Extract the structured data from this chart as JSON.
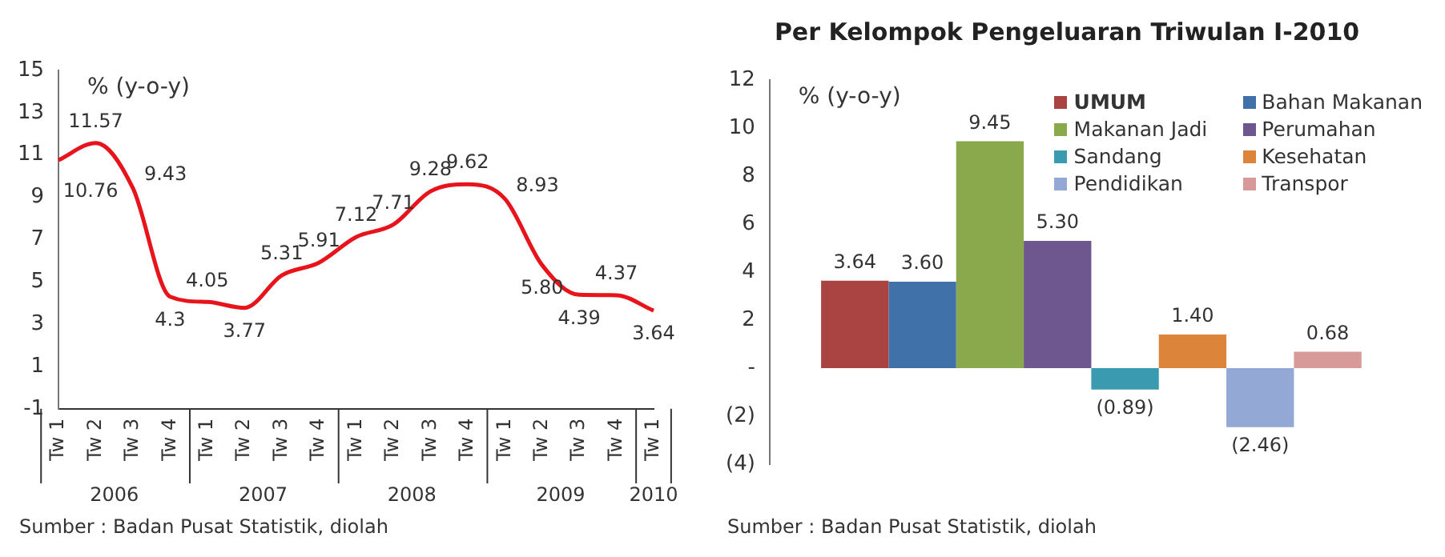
{
  "chart_data": [
    {
      "type": "line",
      "ylabel": "% (y-o-y)",
      "categories": [
        "Tw 1",
        "Tw 2",
        "Tw 3",
        "Tw 4",
        "Tw 1",
        "Tw 2",
        "Tw 3",
        "Tw 4",
        "Tw 1",
        "Tw 2",
        "Tw 3",
        "Tw 4",
        "Tw 1",
        "Tw 2",
        "Tw 3",
        "Tw 4",
        "Tw 1"
      ],
      "series": [
        {
          "color": "#e8141c",
          "values": [
            10.76,
            11.57,
            9.43,
            4.3,
            4.05,
            3.77,
            5.31,
            5.91,
            7.12,
            7.71,
            9.28,
            9.62,
            8.93,
            5.8,
            4.39,
            4.37,
            3.64
          ],
          "value_labels": [
            "10.76",
            "11.57",
            "9.43",
            "4.3",
            "4.05",
            "3.77",
            "5.31",
            "5.91",
            "7.12",
            "7.71",
            "9.28",
            "9.62",
            "8.93",
            "5.80",
            "4.39",
            "4.37",
            "3.64"
          ]
        }
      ],
      "ylim": [
        -1,
        15
      ],
      "yticks": [
        -1,
        1,
        3,
        5,
        7,
        9,
        11,
        13,
        15
      ],
      "grid": false,
      "annotations": [
        "2006",
        "2007",
        "2008",
        "2009",
        "2010",
        "Sumber : Badan Pusat Statistik, diolah"
      ]
    },
    {
      "type": "bar",
      "title": "Per Kelompok Pengeluaran Triwulan I-2010",
      "ylabel": "% (y-o-y)",
      "categories": [
        null
      ],
      "series": [
        {
          "name": "UMUM",
          "color": "#a94442",
          "values": [
            3.64
          ],
          "value_labels": [
            "3.64"
          ]
        },
        {
          "name": "Bahan Makanan",
          "color": "#4071a8",
          "values": [
            3.6
          ],
          "value_labels": [
            "3.60"
          ]
        },
        {
          "name": "Makanan Jadi",
          "color": "#8aa84c",
          "values": [
            9.45
          ],
          "value_labels": [
            "9.45"
          ]
        },
        {
          "name": "Perumahan",
          "color": "#6e578e",
          "values": [
            5.3
          ],
          "value_labels": [
            "5.30"
          ]
        },
        {
          "name": "Sandang",
          "color": "#3a9bb0",
          "values": [
            -0.89
          ],
          "value_labels": [
            "(0.89)"
          ]
        },
        {
          "name": "Kesehatan",
          "color": "#dd843b",
          "values": [
            1.4
          ],
          "value_labels": [
            "1.40"
          ]
        },
        {
          "name": "Pendidikan",
          "color": "#93a8d4",
          "values": [
            -2.46
          ],
          "value_labels": [
            "(2.46)"
          ]
        },
        {
          "name": "Transpor",
          "color": "#d89a98",
          "values": [
            0.68
          ],
          "value_labels": [
            "0.68"
          ]
        }
      ],
      "ylim": [
        -4,
        12
      ],
      "yticks": [
        {
          "value": -4,
          "label": "(4)"
        },
        {
          "value": -2,
          "label": "(2)"
        },
        {
          "value": 0,
          "label": "-"
        },
        2,
        4,
        6,
        8,
        10,
        12
      ],
      "grid": false,
      "legend": "top right",
      "annotations": [
        "Sumber : Badan Pusat Statistik, diolah"
      ]
    }
  ]
}
